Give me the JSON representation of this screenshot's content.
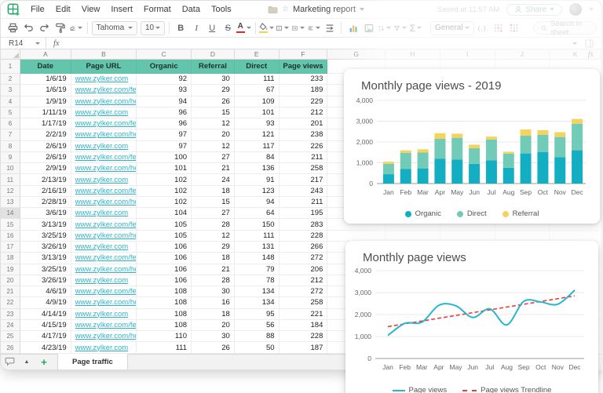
{
  "app": {
    "menu": [
      "File",
      "Edit",
      "View",
      "Insert",
      "Format",
      "Data",
      "Tools"
    ],
    "doc_title": "Marketing report",
    "saved_status": "Saved at 11:57 AM",
    "share_label": "Share"
  },
  "toolbar": {
    "font_name": "Tahoma",
    "font_size": "10",
    "bold_label": "B",
    "italic_label": "I",
    "underline_label": "U",
    "strikethrough_label": "S",
    "font_color_label": "A",
    "sigma_label": "Σ",
    "brackets_label": "(,)",
    "number_format": "General",
    "search_placeholder": "Search in sheet"
  },
  "formula_bar": {
    "cell_ref": "R14",
    "fx_label": "fx"
  },
  "grid": {
    "col_headers": [
      "A",
      "B",
      "C",
      "D",
      "E",
      "F",
      "G",
      "H",
      "I",
      "J",
      "K"
    ],
    "selected_row": 14,
    "header_row": [
      "Date",
      "Page URL",
      "Organic",
      "Referral",
      "Direct",
      "Page views"
    ],
    "rows": [
      [
        "1/6/19",
        "www.zylker.com",
        92,
        30,
        111,
        233
      ],
      [
        "1/6/19",
        "www.zylker.com/features/",
        93,
        29,
        67,
        189
      ],
      [
        "1/9/19",
        "www.zylker.com/help/",
        94,
        26,
        109,
        229
      ],
      [
        "1/11/19",
        "www.zylker.com",
        96,
        15,
        101,
        212
      ],
      [
        "1/17/19",
        "www.zylker.com/features/",
        96,
        12,
        93,
        201
      ],
      [
        "2/2/19",
        "www.zylker.com/help/",
        97,
        20,
        121,
        238
      ],
      [
        "2/6/19",
        "www.zylker.com",
        97,
        12,
        117,
        226
      ],
      [
        "2/6/19",
        "www.zylker.com/features/",
        100,
        27,
        84,
        211
      ],
      [
        "2/9/19",
        "www.zylker.com/help/",
        101,
        21,
        136,
        258
      ],
      [
        "2/13/19",
        "www.zylker.com",
        102,
        24,
        91,
        217
      ],
      [
        "2/16/19",
        "www.zylker.com/features/",
        102,
        18,
        123,
        243
      ],
      [
        "2/28/19",
        "www.zylker.com/help/",
        102,
        15,
        94,
        211
      ],
      [
        "3/6/19",
        "www.zylker.com",
        104,
        27,
        64,
        195
      ],
      [
        "3/13/19",
        "www.zylker.com/features/",
        105,
        28,
        150,
        283
      ],
      [
        "3/25/19",
        "www.zylker.com/help/",
        105,
        12,
        111,
        228
      ],
      [
        "3/26/19",
        "www.zylker.com",
        106,
        29,
        131,
        266
      ],
      [
        "3/13/19",
        "www.zylker.com/features/",
        106,
        18,
        148,
        272
      ],
      [
        "3/25/19",
        "www.zylker.com/help/",
        106,
        21,
        79,
        206
      ],
      [
        "3/26/19",
        "www.zylker.com",
        106,
        28,
        78,
        212
      ],
      [
        "4/6/19",
        "www.zylker.com/features/",
        108,
        30,
        134,
        272
      ],
      [
        "4/9/19",
        "www.zylker.com/help/",
        108,
        16,
        134,
        258
      ],
      [
        "4/14/19",
        "www.zylker.com",
        108,
        18,
        95,
        221
      ],
      [
        "4/15/19",
        "www.zylker.com/features/",
        108,
        20,
        56,
        184
      ],
      [
        "4/17/19",
        "www.zylker.com/help/",
        110,
        30,
        88,
        228
      ],
      [
        "4/23/19",
        "www.zylker.com",
        111,
        26,
        50,
        187
      ]
    ]
  },
  "sheet_bar": {
    "active_tab": "Page traffic",
    "add_glyph": "+",
    "list_glyph": "▲"
  },
  "colors": {
    "header_fill": "#63c5ac",
    "link": "#2eb4c5",
    "organic": "#14aec3",
    "direct": "#72cbb7",
    "referral": "#f4d35e",
    "line": "#26b6cf",
    "trendline": "#ef3b36"
  },
  "chart_data": [
    {
      "type": "bar",
      "stacked": true,
      "title": "Monthly page views - 2019",
      "categories": [
        "Jan",
        "Feb",
        "Mar",
        "Apr",
        "May",
        "Jun",
        "Jul",
        "Aug",
        "Sep",
        "Oct",
        "Nov",
        "Dec"
      ],
      "series": [
        {
          "name": "Organic",
          "color": "#14aec3",
          "values": [
            450,
            700,
            730,
            1200,
            1150,
            950,
            1120,
            760,
            1450,
            1520,
            1270,
            1600
          ]
        },
        {
          "name": "Direct",
          "color": "#72cbb7",
          "values": [
            500,
            780,
            760,
            950,
            1050,
            750,
            1000,
            680,
            850,
            830,
            970,
            1280
          ]
        },
        {
          "name": "Referral",
          "color": "#f4d35e",
          "values": [
            100,
            120,
            160,
            270,
            200,
            170,
            140,
            90,
            300,
            220,
            230,
            230
          ]
        }
      ],
      "ylim": [
        0,
        4000
      ],
      "ytick_step": 1000,
      "yticks": [
        "0",
        "1,000",
        "2,000",
        "3,000",
        "4,000"
      ],
      "grid": true,
      "legend_position": "bottom"
    },
    {
      "type": "line",
      "title": "Monthly page views",
      "categories": [
        "Jan",
        "Feb",
        "Mar",
        "Apr",
        "May",
        "Jun",
        "Jul",
        "Aug",
        "Sep",
        "Oct",
        "Nov",
        "Dec"
      ],
      "series": [
        {
          "name": "Page views",
          "color": "#26b6cf",
          "values": [
            1050,
            1600,
            1650,
            2420,
            2400,
            1870,
            2260,
            1530,
            2600,
            2570,
            2470,
            3110
          ]
        }
      ],
      "trendline": {
        "name": "Page views Trendline",
        "color": "#ef3b36",
        "start": 1450,
        "end": 2850
      },
      "ylim": [
        0,
        4000
      ],
      "ytick_step": 1000,
      "yticks": [
        "0",
        "1,000",
        "2,000",
        "3,000",
        "4,000"
      ],
      "grid": true,
      "legend_position": "bottom"
    }
  ]
}
